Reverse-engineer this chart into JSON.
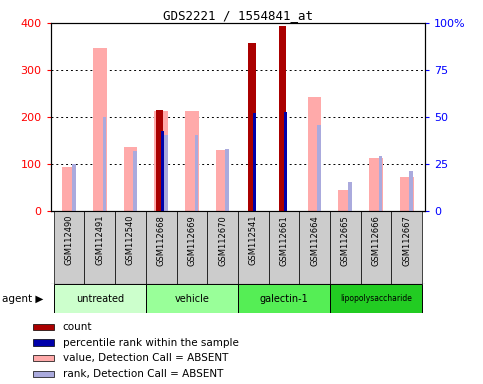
{
  "title": "GDS2221 / 1554841_at",
  "samples": [
    "GSM112490",
    "GSM112491",
    "GSM112540",
    "GSM112668",
    "GSM112669",
    "GSM112670",
    "GSM112541",
    "GSM112661",
    "GSM112664",
    "GSM112665",
    "GSM112666",
    "GSM112667"
  ],
  "groups": [
    {
      "label": "untreated",
      "indices": [
        0,
        1,
        2
      ],
      "color": "#ccffcc"
    },
    {
      "label": "vehicle",
      "indices": [
        3,
        4,
        5
      ],
      "color": "#99ff99"
    },
    {
      "label": "galectin-1",
      "indices": [
        6,
        7,
        8
      ],
      "color": "#55ee55"
    },
    {
      "label": "lipopolysaccharide",
      "indices": [
        9,
        10,
        11
      ],
      "color": "#22cc22"
    }
  ],
  "count_values": [
    null,
    null,
    null,
    215,
    null,
    null,
    358,
    393,
    null,
    null,
    null,
    null
  ],
  "percentile_rank": [
    null,
    null,
    null,
    170,
    null,
    null,
    208,
    210,
    null,
    null,
    null,
    null
  ],
  "absent_value": [
    95,
    347,
    137,
    213,
    212,
    130,
    null,
    null,
    243,
    46,
    113,
    72
  ],
  "absent_rank": [
    100,
    200,
    128,
    163,
    163,
    133,
    null,
    null,
    183,
    63,
    118,
    85
  ],
  "ylim": [
    0,
    400
  ],
  "y2lim": [
    0,
    100
  ],
  "yticks": [
    0,
    100,
    200,
    300,
    400
  ],
  "y2ticks": [
    0,
    25,
    50,
    75,
    100
  ],
  "y2labels": [
    "0",
    "25",
    "50",
    "75",
    "100%"
  ],
  "count_color": "#aa0000",
  "rank_color": "#0000aa",
  "absent_value_color": "#ffaaaa",
  "absent_rank_color": "#aaaadd",
  "bg_color": "#cccccc",
  "plot_bg": "#ffffff",
  "legend": [
    {
      "color": "#aa0000",
      "label": "count"
    },
    {
      "color": "#0000aa",
      "label": "percentile rank within the sample"
    },
    {
      "color": "#ffaaaa",
      "label": "value, Detection Call = ABSENT"
    },
    {
      "color": "#aaaadd",
      "label": "rank, Detection Call = ABSENT"
    }
  ]
}
